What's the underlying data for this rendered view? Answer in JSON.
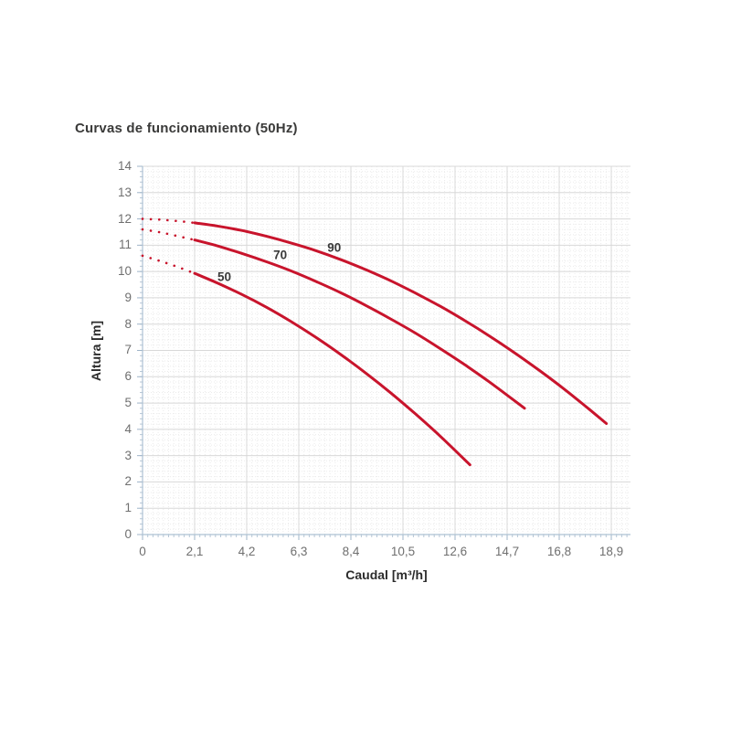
{
  "colors": {
    "curve_red": "#c8142c",
    "major_grid": "#d8d8d8",
    "minor_grid": "#ebebeb",
    "axis_line": "#aec2d4",
    "tick_text": "#6f6f6f",
    "title_text": "#3a3a39"
  },
  "chart_data": {
    "type": "line",
    "title": "Curvas de funcionamiento (50Hz)",
    "xlabel": "Caudal [m³/h]",
    "ylabel": "Altura [m]",
    "xlim": [
      0,
      19.67
    ],
    "ylim": [
      0,
      14
    ],
    "grid": "major and fine dotted minor grid, on",
    "legend_position": "inline curve labels",
    "x_ticks": {
      "values": [
        0,
        2.1,
        4.2,
        6.3,
        8.4,
        10.5,
        12.6,
        14.7,
        16.8,
        18.9
      ],
      "labels": [
        "0",
        "2,1",
        "4,2",
        "6,3",
        "8,4",
        "10,5",
        "12,6",
        "14,7",
        "16,8",
        "18,9"
      ]
    },
    "y_ticks": {
      "values": [
        0,
        1,
        2,
        3,
        4,
        5,
        6,
        7,
        8,
        9,
        10,
        11,
        12,
        13,
        14
      ],
      "labels": [
        "0",
        "1",
        "2",
        "3",
        "4",
        "5",
        "6",
        "7",
        "8",
        "9",
        "10",
        "11",
        "12",
        "13",
        "14"
      ]
    },
    "series": [
      {
        "name": "50",
        "color": "#c8142c",
        "dotted_until": 2.1,
        "label_pos": [
          3.3,
          9.78
        ],
        "points": [
          [
            0,
            10.6
          ],
          [
            0.7,
            10.4
          ],
          [
            1.4,
            10.18
          ],
          [
            2.1,
            9.93
          ],
          [
            3,
            9.57
          ],
          [
            4,
            9.13
          ],
          [
            5,
            8.64
          ],
          [
            6,
            8.09
          ],
          [
            7,
            7.49
          ],
          [
            8,
            6.84
          ],
          [
            9,
            6.14
          ],
          [
            10,
            5.39
          ],
          [
            11,
            4.59
          ],
          [
            12,
            3.74
          ],
          [
            13.2,
            2.65
          ]
        ]
      },
      {
        "name": "70",
        "color": "#c8142c",
        "dotted_until": 2.1,
        "label_pos": [
          5.55,
          10.64
        ],
        "points": [
          [
            0,
            11.6
          ],
          [
            0.7,
            11.49
          ],
          [
            1.4,
            11.35
          ],
          [
            2.1,
            11.2
          ],
          [
            3,
            10.98
          ],
          [
            4,
            10.69
          ],
          [
            5,
            10.37
          ],
          [
            6,
            10.02
          ],
          [
            7,
            9.62
          ],
          [
            8,
            9.19
          ],
          [
            9,
            8.71
          ],
          [
            10,
            8.2
          ],
          [
            11,
            7.66
          ],
          [
            12,
            7.07
          ],
          [
            13,
            6.45
          ],
          [
            14,
            5.79
          ],
          [
            15.4,
            4.8
          ]
        ]
      },
      {
        "name": "90",
        "color": "#c8142c",
        "dotted_until": 2.1,
        "label_pos": [
          7.73,
          10.92
        ],
        "points": [
          [
            0,
            12
          ],
          [
            0.7,
            11.97
          ],
          [
            1.4,
            11.92
          ],
          [
            2.1,
            11.85
          ],
          [
            3,
            11.73
          ],
          [
            4,
            11.56
          ],
          [
            5,
            11.34
          ],
          [
            6,
            11.08
          ],
          [
            7,
            10.79
          ],
          [
            8,
            10.45
          ],
          [
            9,
            10.07
          ],
          [
            10,
            9.65
          ],
          [
            11,
            9.18
          ],
          [
            12,
            8.68
          ],
          [
            13,
            8.13
          ],
          [
            14,
            7.54
          ],
          [
            15,
            6.91
          ],
          [
            16,
            6.24
          ],
          [
            17,
            5.53
          ],
          [
            18,
            4.77
          ],
          [
            18.7,
            4.22
          ]
        ]
      }
    ]
  }
}
